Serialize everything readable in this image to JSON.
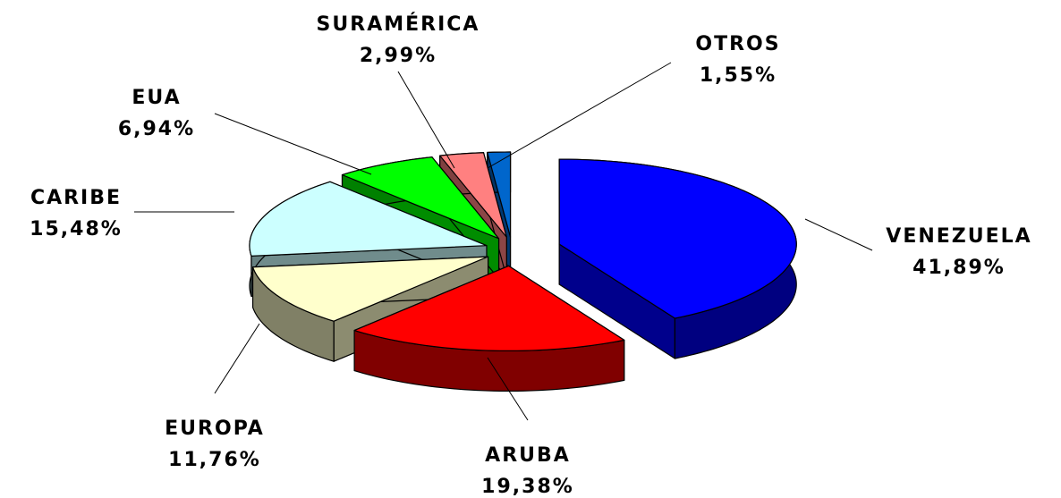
{
  "chart_data": {
    "type": "pie",
    "categories": [
      "VENEZUELA",
      "ARUBA",
      "EUROPA",
      "CARIBE",
      "EUA",
      "SURAMÉRICA",
      "OTROS"
    ],
    "values": [
      41.89,
      19.38,
      11.76,
      15.48,
      6.94,
      2.99,
      1.55
    ],
    "value_labels": [
      "41,89%",
      "19,38%",
      "11,76%",
      "15,48%",
      "6,94%",
      "2,99%",
      "1,55%"
    ],
    "colors": [
      "#0000ff",
      "#ff0000",
      "#ffffcc",
      "#ccffff",
      "#00ff00",
      "#ff8080",
      "#0066cc"
    ]
  }
}
